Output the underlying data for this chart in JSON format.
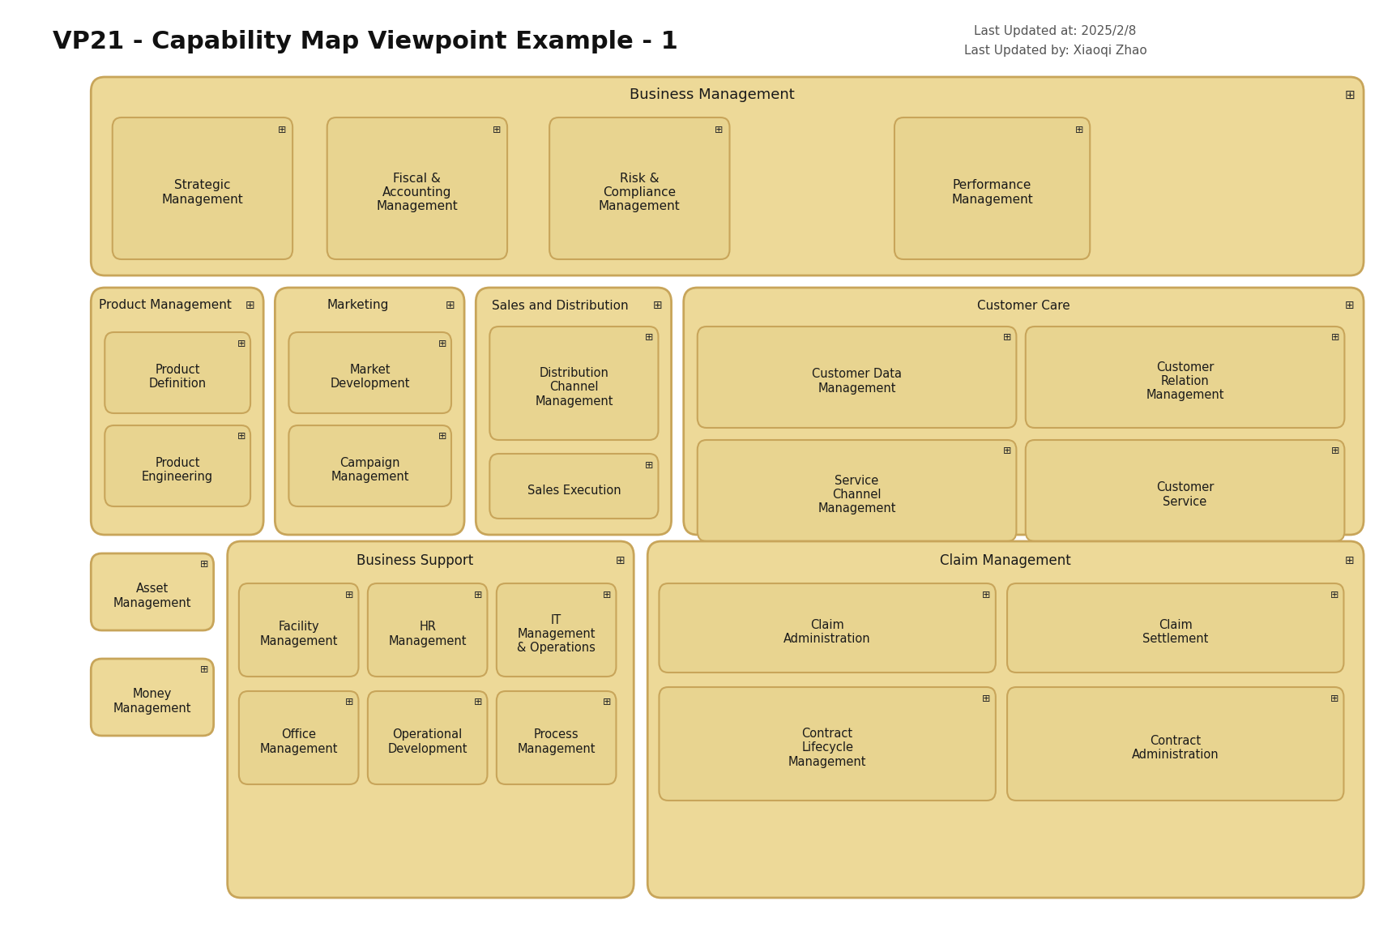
{
  "title": "VP21 - Capability Map Viewpoint Example - 1",
  "subtitle1": "Last Updated at: 2025/2/8",
  "subtitle2": "Last Updated by: Xiaoqi Zhao",
  "bg_color": "#FFFFFF",
  "outer_fc": "#EDD998",
  "outer_ec": "#C8A55A",
  "inner_fc": "#E8D490",
  "inner_ec": "#C8A55A",
  "label_color": "#1a1a1a",
  "icon_color": "#2a2a2a",
  "subtitle_color": "#555555"
}
